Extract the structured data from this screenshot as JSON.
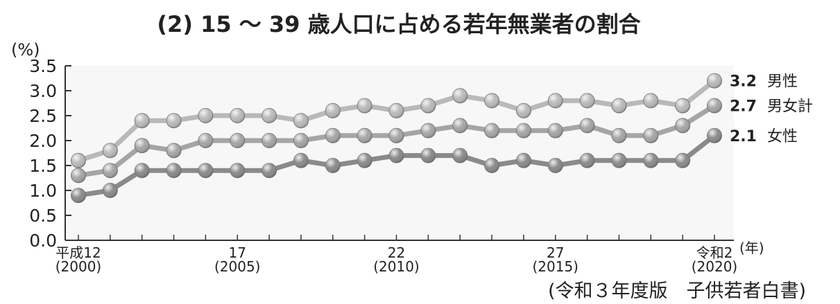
{
  "chart_data": {
    "type": "line",
    "title": "(2) 15 〜 39 歳人口に占める若年無業者の割合",
    "ylabel": "(%)",
    "xlabel": "(年)",
    "ylim": [
      0,
      3.5
    ],
    "yticks": [
      "0.0",
      "0.5",
      "1.0",
      "1.5",
      "2.0",
      "2.5",
      "3.0",
      "3.5"
    ],
    "x": [
      2000,
      2001,
      2002,
      2003,
      2004,
      2005,
      2006,
      2007,
      2008,
      2009,
      2010,
      2011,
      2012,
      2013,
      2014,
      2015,
      2016,
      2017,
      2018,
      2019,
      2020
    ],
    "xtick_labels": [
      {
        "x": 2000,
        "line1": "平成12",
        "line2": "(2000)"
      },
      {
        "x": 2005,
        "line1": "17",
        "line2": "(2005)"
      },
      {
        "x": 2010,
        "line1": "22",
        "line2": "(2010)"
      },
      {
        "x": 2015,
        "line1": "27",
        "line2": "(2015)"
      },
      {
        "x": 2020,
        "line1": "令和2",
        "line2": "(2020)"
      }
    ],
    "series": [
      {
        "name": "男性",
        "end_value": "3.2",
        "color": "#b9b9b9",
        "values": [
          1.6,
          1.8,
          2.4,
          2.4,
          2.5,
          2.5,
          2.5,
          2.4,
          2.6,
          2.7,
          2.6,
          2.7,
          2.9,
          2.8,
          2.6,
          2.8,
          2.8,
          2.7,
          2.8,
          2.7,
          3.2
        ]
      },
      {
        "name": "男女計",
        "end_value": "2.7",
        "color": "#a5a5a5",
        "values": [
          1.3,
          1.4,
          1.9,
          1.8,
          2.0,
          2.0,
          2.0,
          2.0,
          2.1,
          2.1,
          2.1,
          2.2,
          2.3,
          2.2,
          2.2,
          2.2,
          2.3,
          2.1,
          2.1,
          2.3,
          2.7
        ]
      },
      {
        "name": "女性",
        "end_value": "2.1",
        "color": "#8a8a8a",
        "values": [
          0.9,
          1.0,
          1.4,
          1.4,
          1.4,
          1.4,
          1.4,
          1.6,
          1.5,
          1.6,
          1.7,
          1.7,
          1.7,
          1.5,
          1.6,
          1.5,
          1.6,
          1.6,
          1.6,
          1.6,
          2.1
        ]
      }
    ],
    "grid": false,
    "legend": "right-end labels"
  },
  "source_note": "(令和３年度版　子供若者白書)",
  "colors": {
    "plot_bg": "#f7f7f7",
    "axis": "#333333",
    "text": "#222222"
  }
}
